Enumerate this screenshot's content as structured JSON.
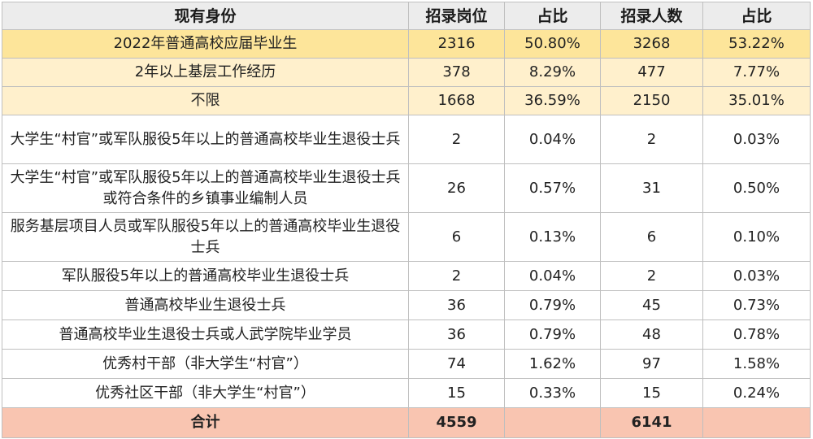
{
  "headers": [
    "现有身份",
    "招录岗位",
    "占比",
    "招录人数",
    "占比"
  ],
  "rows": [
    [
      "2022年普通高校应届毕业生",
      "2316",
      "50.80%",
      "3268",
      "53.22%"
    ],
    [
      "2年以上基层工作经历",
      "378",
      "8.29%",
      "477",
      "7.77%"
    ],
    [
      "不限",
      "1668",
      "36.59%",
      "2150",
      "35.01%"
    ],
    [
      "大学生“村官”或军队服役5年以上的普通高校毕业生退役士兵",
      "2",
      "0.04%",
      "2",
      "0.03%"
    ],
    [
      "大学生“村官”或军队服役5年以上的普通高校毕业生退役士兵或符合条件的乡镇事业编制人员",
      "26",
      "0.57%",
      "31",
      "0.50%"
    ],
    [
      "服务基层项目人员或军队服役5年以上的普通高校毕业生退役士兵",
      "6",
      "0.13%",
      "6",
      "0.10%"
    ],
    [
      "军队服役5年以上的普通高校毕业生退役士兵",
      "2",
      "0.04%",
      "2",
      "0.03%"
    ],
    [
      "普通高校毕业生退役士兵",
      "36",
      "0.79%",
      "45",
      "0.73%"
    ],
    [
      "普通高校毕业生退役士兵或人武学院毕业学员",
      "36",
      "0.79%",
      "48",
      "0.78%"
    ],
    [
      "优秀村干部（非大学生“村官”）",
      "74",
      "1.62%",
      "97",
      "1.58%"
    ],
    [
      "优秀社区干部（非大学生“村官”）",
      "15",
      "0.33%",
      "15",
      "0.24%"
    ]
  ],
  "total": [
    "合计",
    "4559",
    "",
    "6141",
    ""
  ],
  "colors": {
    "header_bg": "#ececec",
    "highlight_row_1": "#fde59a",
    "highlight_row_2": "#fff0cc",
    "total_row": "#f9c5b1"
  }
}
